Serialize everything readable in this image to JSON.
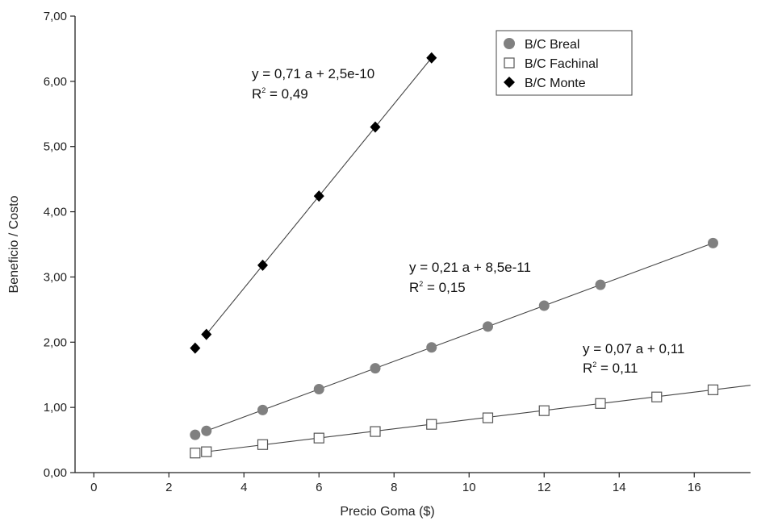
{
  "chart_data": {
    "type": "scatter",
    "xlabel": "Precio Goma ($)",
    "ylabel": "Beneficio / Costo",
    "xlim": [
      -0.5,
      17.5
    ],
    "ylim": [
      0,
      7
    ],
    "x_ticks": [
      "0",
      "2",
      "4",
      "6",
      "8",
      "10",
      "12",
      "14",
      "16"
    ],
    "y_ticks": [
      "0,00",
      "1,00",
      "2,00",
      "3,00",
      "4,00",
      "5,00",
      "6,00",
      "7,00"
    ],
    "legend_position": "top-right",
    "series": [
      {
        "name": "B/C Breal",
        "marker": "circle",
        "color": "#808080",
        "x": [
          2.7,
          3,
          4.5,
          6,
          7.5,
          9,
          10.5,
          12,
          13.5,
          16.5
        ],
        "y": [
          0.58,
          0.64,
          0.96,
          1.28,
          1.6,
          1.92,
          2.24,
          2.56,
          2.88,
          3.52
        ],
        "trendline": {
          "x": [
            3,
            16.5
          ],
          "y": [
            0.64,
            3.52
          ]
        },
        "equation": "y = 0,21 a + 8,5e-11",
        "r2_label": "R",
        "r2_value": " = 0,15"
      },
      {
        "name": "B/C Fachinal",
        "marker": "square-open",
        "color": "#555555",
        "x": [
          2.7,
          3,
          4.5,
          6,
          7.5,
          9,
          10.5,
          12,
          13.5,
          15,
          16.5
        ],
        "y": [
          0.3,
          0.32,
          0.43,
          0.53,
          0.63,
          0.74,
          0.84,
          0.95,
          1.06,
          1.16,
          1.27
        ],
        "trendline": {
          "x": [
            3,
            17.5
          ],
          "y": [
            0.32,
            1.34
          ]
        },
        "equation": "y = 0,07 a + 0,11",
        "r2_label": "R",
        "r2_value": " = 0,11"
      },
      {
        "name": "B/C Monte",
        "marker": "diamond",
        "color": "#000000",
        "x": [
          2.7,
          3,
          4.5,
          6,
          7.5,
          9
        ],
        "y": [
          1.91,
          2.12,
          3.18,
          4.24,
          5.3,
          6.36
        ],
        "trendline": {
          "x": [
            3,
            9
          ],
          "y": [
            2.12,
            6.36
          ]
        },
        "equation": "y = 0,71 a + 2,5e-10",
        "r2_label": "R",
        "r2_value": " = 0,49"
      }
    ]
  }
}
